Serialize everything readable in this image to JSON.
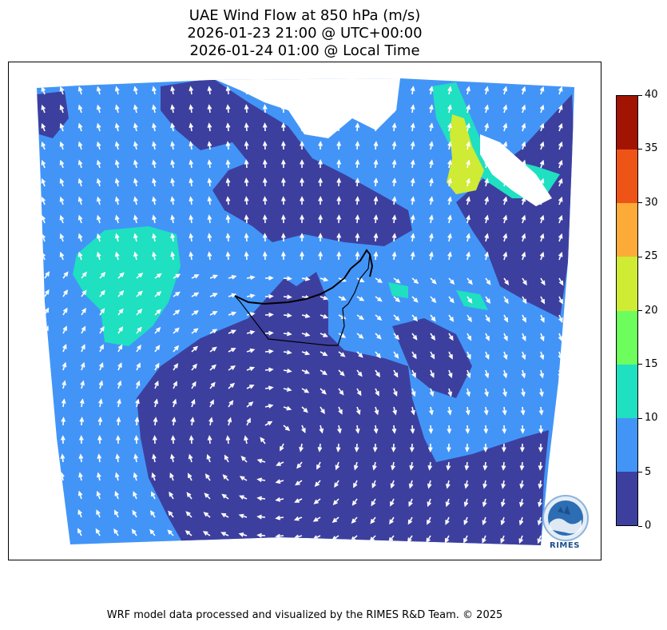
{
  "title": {
    "line1": "UAE Wind Flow at 850 hPa (m/s)",
    "line2": "2026-01-23 21:00 @ UTC+00:00",
    "line3": "2026-01-24 01:00 @ Local Time"
  },
  "colorbar": {
    "ticks": [
      "0",
      "5",
      "10",
      "15",
      "20",
      "25",
      "30",
      "35",
      "40"
    ],
    "colors": [
      "#3d3f9e",
      "#4295f7",
      "#1fe0c0",
      "#6dfe5e",
      "#cfeb34",
      "#fcab39",
      "#ee5416",
      "#a11403"
    ]
  },
  "map": {
    "land_color": "#3d3f9e",
    "flow_color": "#4295f7",
    "strong_color": "#1fe0c0",
    "peak_color": "#cfeb34",
    "arrow_color": "#ffffff"
  },
  "logo": {
    "text": "RIMES"
  },
  "footer": {
    "credit": "WRF model data processed and visualized by the RIMES R&D Team. © 2025"
  }
}
